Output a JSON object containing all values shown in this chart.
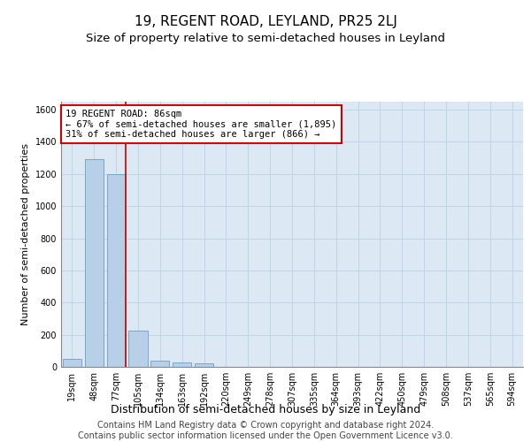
{
  "title": "19, REGENT ROAD, LEYLAND, PR25 2LJ",
  "subtitle": "Size of property relative to semi-detached houses in Leyland",
  "xlabel": "Distribution of semi-detached houses by size in Leyland",
  "ylabel": "Number of semi-detached properties",
  "footer_line1": "Contains HM Land Registry data © Crown copyright and database right 2024.",
  "footer_line2": "Contains public sector information licensed under the Open Government Licence v3.0.",
  "bar_color": "#b8cfe8",
  "bar_edge_color": "#6a9fc8",
  "grid_color": "#c0d4e8",
  "background_color": "#dce8f4",
  "categories": [
    "19sqm",
    "48sqm",
    "77sqm",
    "105sqm",
    "134sqm",
    "163sqm",
    "192sqm",
    "220sqm",
    "249sqm",
    "278sqm",
    "307sqm",
    "335sqm",
    "364sqm",
    "393sqm",
    "422sqm",
    "450sqm",
    "479sqm",
    "508sqm",
    "537sqm",
    "565sqm",
    "594sqm"
  ],
  "values": [
    50,
    1290,
    1200,
    225,
    40,
    25,
    20,
    0,
    0,
    0,
    0,
    0,
    0,
    0,
    0,
    0,
    0,
    0,
    0,
    0,
    0
  ],
  "ylim": [
    0,
    1650
  ],
  "yticks": [
    0,
    200,
    400,
    600,
    800,
    1000,
    1200,
    1400,
    1600
  ],
  "property_bin_index": 2,
  "annotation_title": "19 REGENT ROAD: 86sqm",
  "annotation_line1": "← 67% of semi-detached houses are smaller (1,895)",
  "annotation_line2": "31% of semi-detached houses are larger (866) →",
  "vline_color": "#cc0000",
  "annotation_box_color": "#ffffff",
  "annotation_box_edge": "#cc0000",
  "title_fontsize": 11,
  "subtitle_fontsize": 9.5,
  "tick_fontsize": 7,
  "ylabel_fontsize": 8,
  "xlabel_fontsize": 9,
  "annotation_fontsize": 7.5,
  "footer_fontsize": 7
}
